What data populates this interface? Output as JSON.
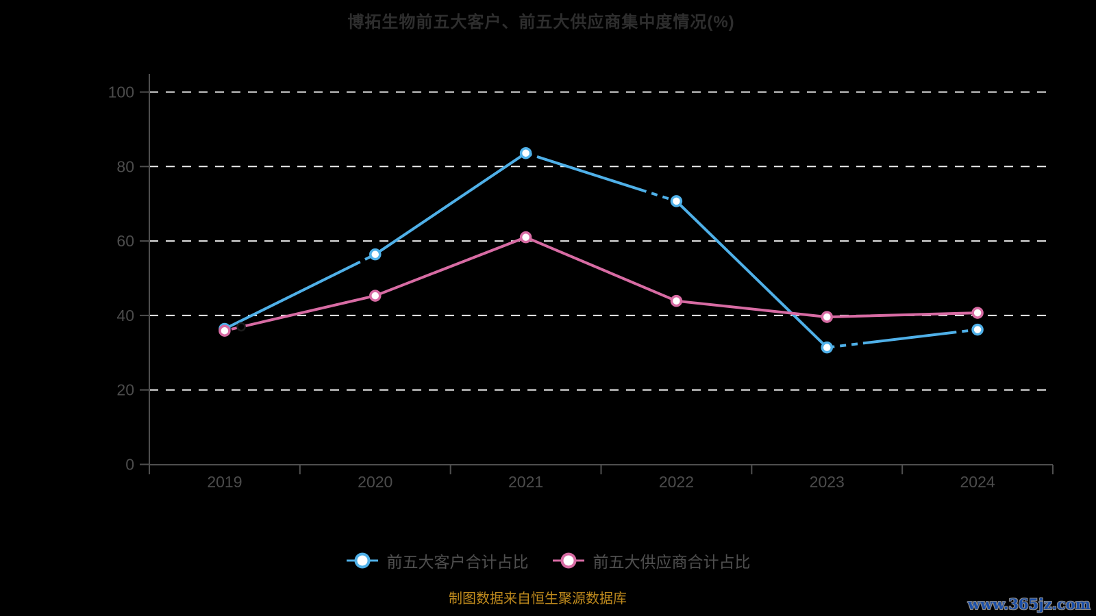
{
  "title": "博拓生物前五大客户、前五大供应商集中度情况(%)",
  "source_note": "制图数据来自恒生聚源数据库",
  "watermark": "www.365jz.com",
  "colors": {
    "background": "#000000",
    "title_text": "#2e2e2e",
    "axis": "#4f4f4f",
    "tick_label": "#4c4c4c",
    "gridline": "#ececec",
    "legend_text": "#4f4f4f",
    "source_text": "#bf8a1d",
    "watermark_text": "#1b4fa8",
    "overlap_artifact": "#000000"
  },
  "chart_data": {
    "type": "line",
    "title": "博拓生物前五大客户、前五大供应商集中度情况(%)",
    "categories": [
      "2019",
      "2020",
      "2021",
      "2022",
      "2023",
      "2024"
    ],
    "series": [
      {
        "name": "前五大客户合计占比",
        "color": "#4fb0e8",
        "values": [
          36.4,
          56.4,
          83.6,
          70.7,
          31.4,
          36.2
        ]
      },
      {
        "name": "前五大供应商合计占比",
        "color": "#d76ba3",
        "values": [
          35.9,
          45.3,
          61.0,
          43.9,
          39.6,
          40.7
        ]
      }
    ],
    "ylim": [
      0,
      100
    ],
    "yticks": [
      0,
      20,
      40,
      60,
      80,
      100
    ],
    "grid": "horizontal-dashed-white",
    "legend_position": "bottom",
    "marker": "circle-white-fill"
  }
}
